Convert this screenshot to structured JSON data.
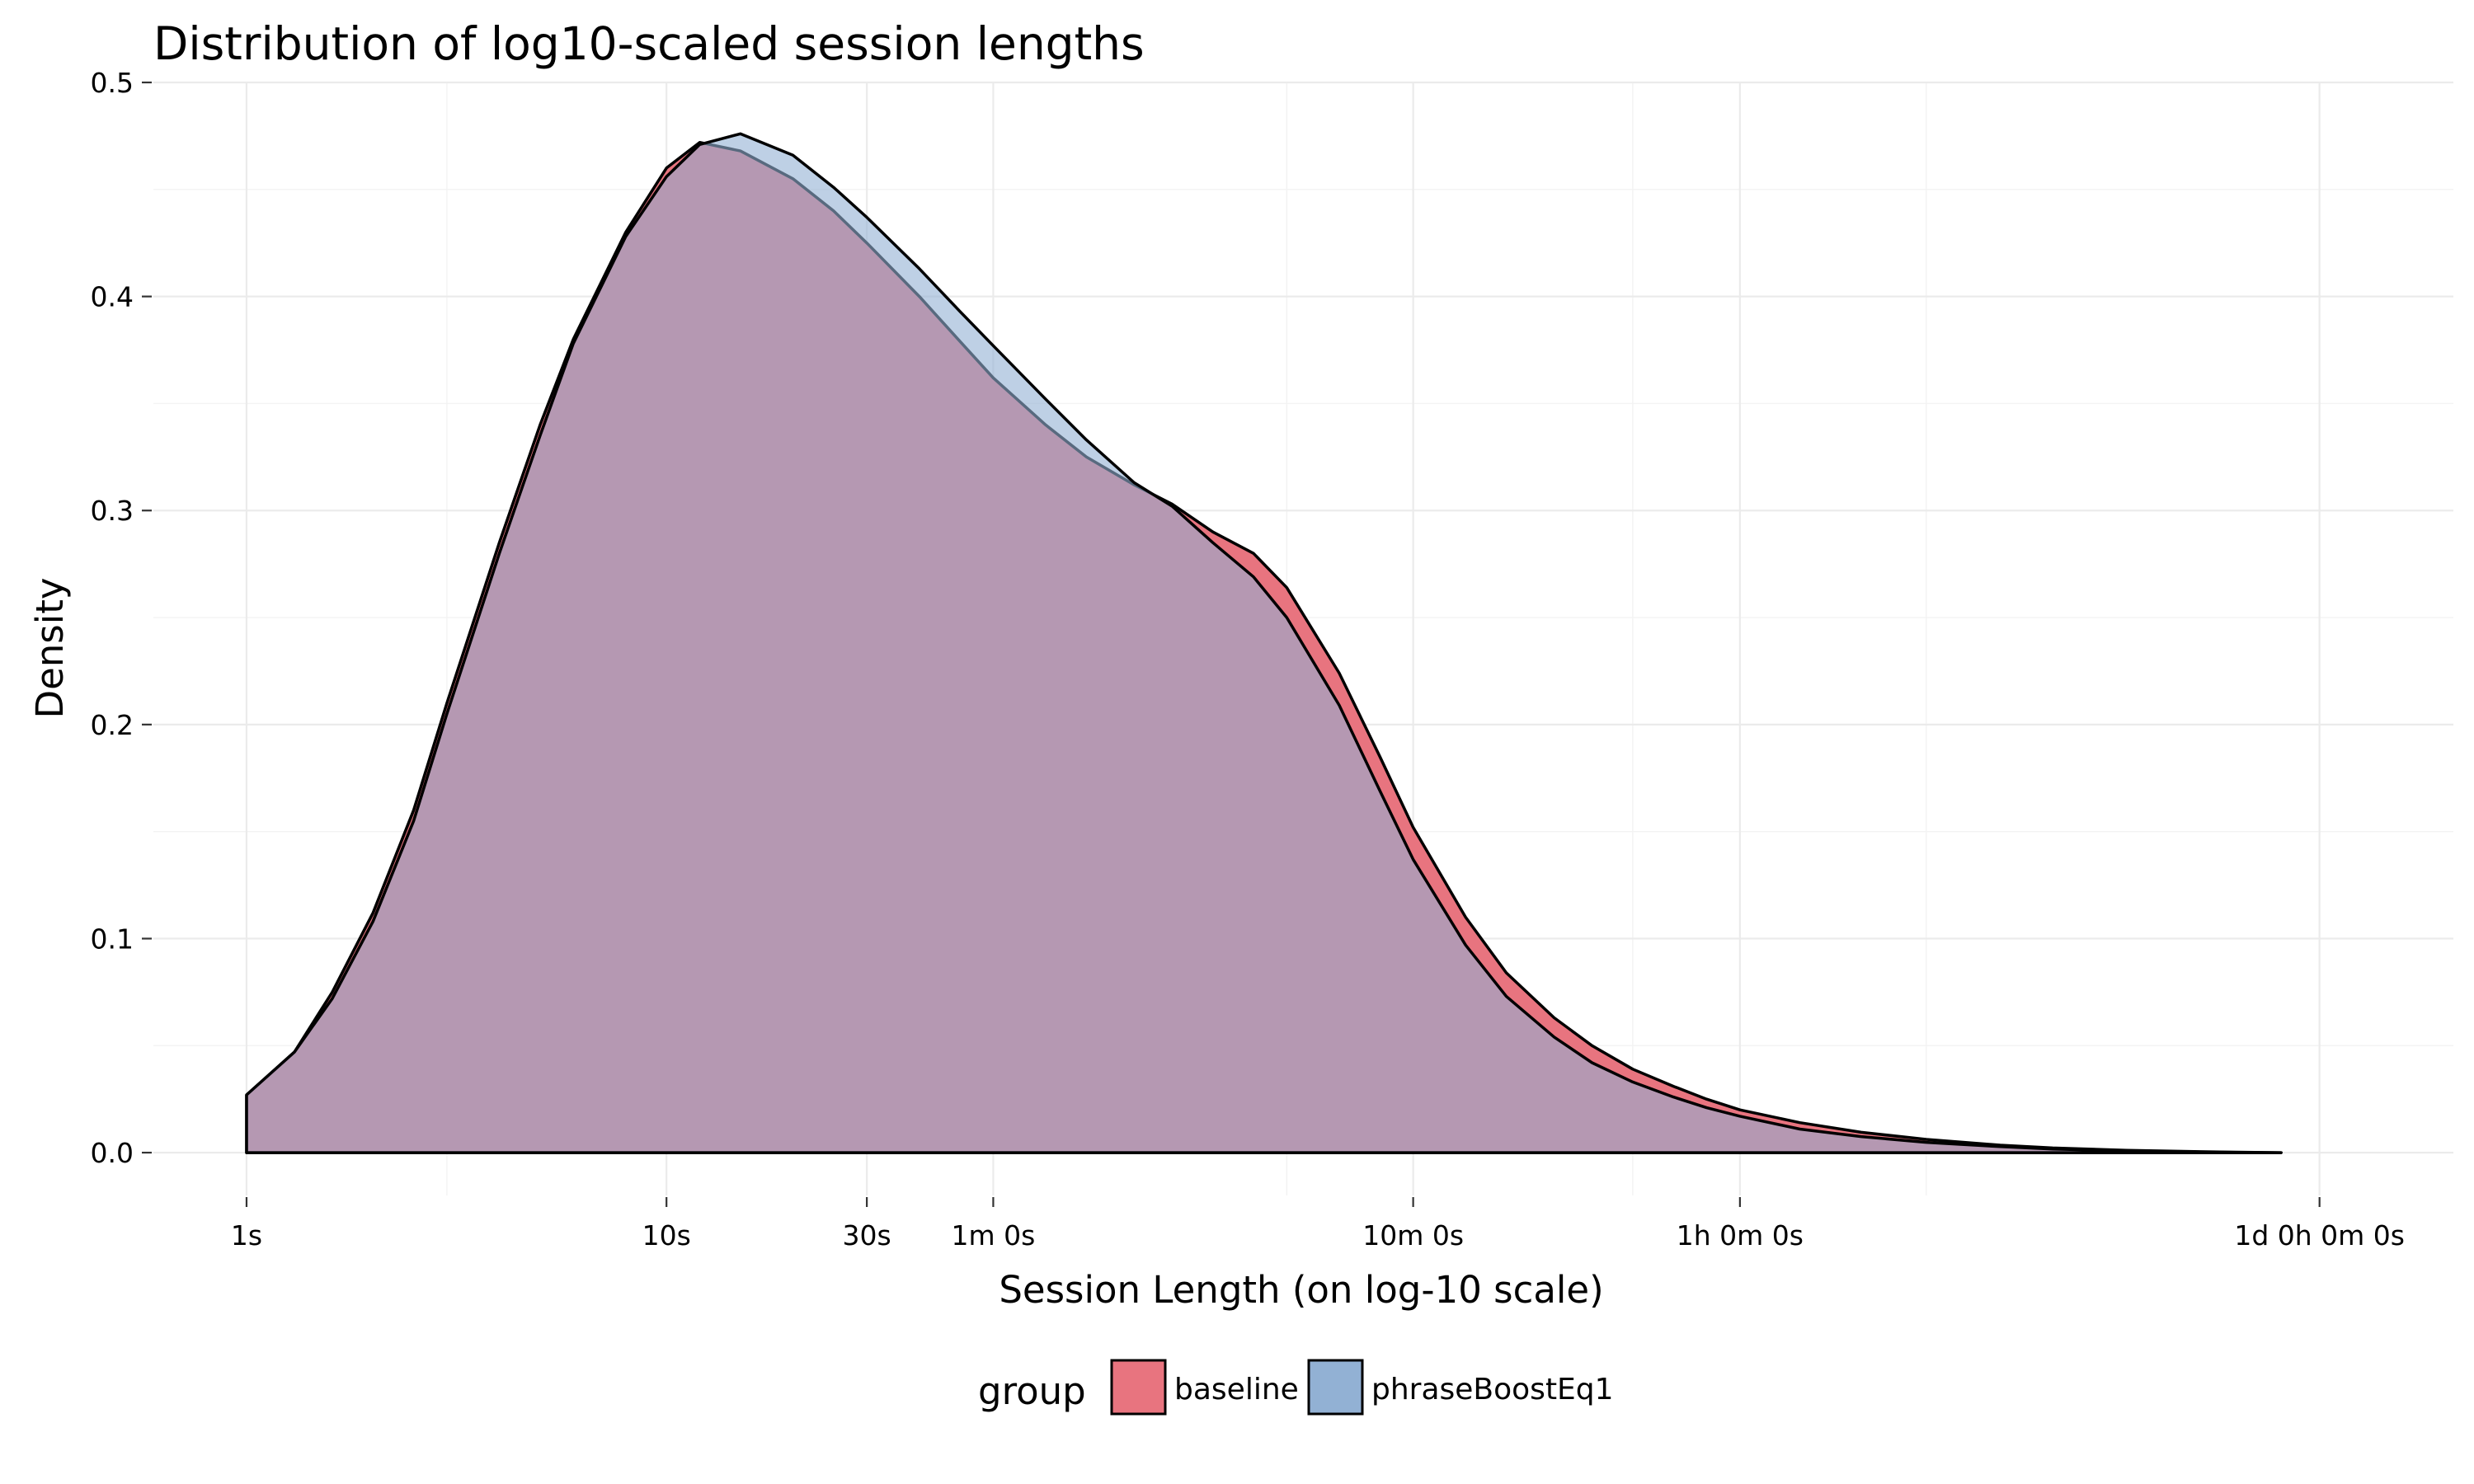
{
  "chart_data": {
    "type": "area",
    "title": "Distribution of log10-scaled session lengths",
    "xlabel": "Session Length (on log-10 scale)",
    "ylabel": "Density",
    "x_scale": "log10",
    "x_unit": "seconds",
    "xlim": [
      0.6,
      180000
    ],
    "ylim": [
      -0.02,
      0.5
    ],
    "x_ticks": [
      {
        "value": 1,
        "label": "1s"
      },
      {
        "value": 10,
        "label": "10s"
      },
      {
        "value": 30,
        "label": "30s"
      },
      {
        "value": 60,
        "label": "1m 0s"
      },
      {
        "value": 600,
        "label": "10m 0s"
      },
      {
        "value": 3600,
        "label": "1h 0m 0s"
      },
      {
        "value": 86400,
        "label": "1d 0h 0m 0s"
      }
    ],
    "y_ticks": [
      {
        "value": 0.0,
        "label": "0.0"
      },
      {
        "value": 0.1,
        "label": "0.1"
      },
      {
        "value": 0.2,
        "label": "0.2"
      },
      {
        "value": 0.3,
        "label": "0.3"
      },
      {
        "value": 0.4,
        "label": "0.4"
      },
      {
        "value": 0.5,
        "label": "0.5"
      }
    ],
    "grid": true,
    "legend": {
      "title": "group",
      "position": "bottom"
    },
    "series": [
      {
        "name": "baseline",
        "color": "#e8747f",
        "x": [
          1,
          1.3,
          1.6,
          2,
          2.5,
          3,
          4,
          5,
          6,
          8,
          10,
          12,
          15,
          20,
          25,
          30,
          40,
          50,
          60,
          80,
          100,
          130,
          160,
          200,
          250,
          300,
          400,
          500,
          600,
          800,
          1000,
          1300,
          1600,
          2000,
          2500,
          3000,
          3600,
          5000,
          7000,
          10000,
          15000,
          20000,
          30000,
          50000,
          70000
        ],
        "y": [
          0.027,
          0.047,
          0.075,
          0.112,
          0.16,
          0.21,
          0.285,
          0.34,
          0.38,
          0.43,
          0.46,
          0.472,
          0.468,
          0.455,
          0.44,
          0.425,
          0.4,
          0.379,
          0.362,
          0.34,
          0.325,
          0.312,
          0.303,
          0.29,
          0.28,
          0.264,
          0.224,
          0.185,
          0.152,
          0.11,
          0.084,
          0.063,
          0.05,
          0.039,
          0.031,
          0.025,
          0.02,
          0.014,
          0.0095,
          0.0062,
          0.0035,
          0.0022,
          0.0011,
          0.0003,
          0.0
        ]
      },
      {
        "name": "phraseBoostEq1",
        "color": "#92b1d4",
        "x": [
          1,
          1.3,
          1.6,
          2,
          2.5,
          3,
          4,
          5,
          6,
          8,
          10,
          12,
          15,
          20,
          25,
          30,
          40,
          50,
          60,
          80,
          100,
          130,
          160,
          200,
          250,
          300,
          400,
          500,
          600,
          800,
          1000,
          1300,
          1600,
          2000,
          2500,
          3000,
          3600,
          5000,
          7000,
          10000,
          15000,
          20000,
          30000,
          50000,
          70000
        ],
        "y": [
          0.027,
          0.047,
          0.072,
          0.108,
          0.155,
          0.205,
          0.28,
          0.335,
          0.378,
          0.428,
          0.456,
          0.471,
          0.476,
          0.466,
          0.451,
          0.437,
          0.413,
          0.393,
          0.377,
          0.352,
          0.333,
          0.313,
          0.302,
          0.285,
          0.269,
          0.25,
          0.209,
          0.169,
          0.137,
          0.097,
          0.073,
          0.054,
          0.042,
          0.033,
          0.026,
          0.021,
          0.017,
          0.011,
          0.0075,
          0.0048,
          0.0028,
          0.0017,
          0.0008,
          0.0002,
          0.0
        ]
      }
    ]
  }
}
